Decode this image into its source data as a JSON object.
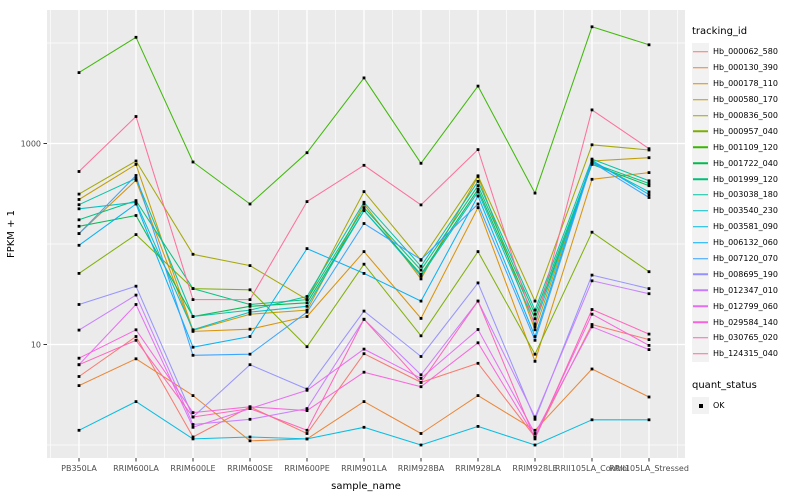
{
  "chart_data": {
    "type": "line",
    "title": "",
    "xlabel": "sample_name",
    "ylabel": "FPKM + 1",
    "y_scale": "log10",
    "ylim": [
      0.74,
      21400
    ],
    "grid": true,
    "legend_position": "right",
    "panel_bg": "#EBEBEB",
    "grid_color": "#FFFFFF",
    "point_color": "#000000",
    "axis_text_color": "#4D4D4D",
    "tick_color": "#333333",
    "y_ticks": [
      {
        "value": 1000,
        "label": "1000"
      },
      {
        "value": 10,
        "label": "10"
      }
    ],
    "y_minor_gridline_values": [
      1,
      100,
      10000
    ],
    "categories": [
      "PB350LA",
      "RRIM600LA",
      "RRIM600LE",
      "RRIM600SE",
      "RRIM600PE",
      "RRIM901LA",
      "RRIM928BA",
      "RRIM928LA",
      "RRIM928LE",
      "RRII105LA_Control",
      "RRII105LA_Stressed"
    ],
    "series": [
      {
        "name": "Hb_000062_580",
        "color": "#F8766D",
        "values": [
          4.8,
          12,
          1.2,
          2.4,
          1.3,
          8.1,
          4.2,
          6.5,
          1.2,
          15.8,
          11.2
        ]
      },
      {
        "name": "Hb_000130_390",
        "color": "#EA8331",
        "values": [
          3.9,
          7.2,
          3.1,
          1.1,
          1.15,
          2.7,
          1.3,
          3.1,
          1.4,
          5.7,
          3.0
        ]
      },
      {
        "name": "Hb_000178_110",
        "color": "#D89000",
        "values": [
          127,
          430,
          13.5,
          14.2,
          19,
          84,
          18.2,
          230,
          6.8,
          440,
          513
        ]
      },
      {
        "name": "Hb_000580_170",
        "color": "#C09B00",
        "values": [
          277,
          620,
          13.8,
          20,
          22,
          250,
          45,
          470,
          14,
          670,
          723
        ]
      },
      {
        "name": "Hb_000836_500",
        "color": "#A3A500",
        "values": [
          314,
          670,
          79,
          61,
          28,
          332,
          69,
          477,
          27,
          970,
          862
        ]
      },
      {
        "name": "Hb_000957_040",
        "color": "#7CAE00",
        "values": [
          51,
          124,
          36,
          35,
          9.5,
          63,
          12.2,
          84,
          8,
          131,
          53
        ]
      },
      {
        "name": "Hb_001109_120",
        "color": "#39B600",
        "values": [
          5080,
          11400,
          655,
          250,
          810,
          4500,
          635,
          3725,
          321,
          14500,
          9600
        ]
      },
      {
        "name": "Hb_001722_040",
        "color": "#00BB4E",
        "values": [
          150,
          192,
          19,
          24,
          26,
          215,
          50,
          350,
          18,
          620,
          380
        ]
      },
      {
        "name": "Hb_001999_120",
        "color": "#00BF7D",
        "values": [
          174,
          270,
          36,
          25,
          28,
          230,
          55,
          380,
          20,
          640,
          400
        ]
      },
      {
        "name": "Hb_003038_180",
        "color": "#00C1A3",
        "values": [
          246,
          450,
          19,
          22,
          30,
          260,
          60,
          420,
          22,
          700,
          425
        ]
      },
      {
        "name": "Hb_003540_230",
        "color": "#00BFC4",
        "values": [
          224,
          260,
          14,
          21,
          24,
          215,
          48,
          330,
          16,
          660,
          330
        ]
      },
      {
        "name": "Hb_003581_090",
        "color": "#00BAE0",
        "values": [
          1.4,
          2.7,
          1.15,
          1.2,
          1.15,
          1.5,
          1.0,
          1.53,
          1.0,
          1.78,
          1.78
        ]
      },
      {
        "name": "Hb_006132_060",
        "color": "#00B0F6",
        "values": [
          97,
          250,
          9.4,
          12,
          90,
          51,
          27,
          300,
          12,
          680,
          310
        ]
      },
      {
        "name": "Hb_007120_070",
        "color": "#35A2FF",
        "values": [
          127,
          480,
          7.8,
          8,
          21,
          160,
          70,
          250,
          11,
          650,
          290
        ]
      },
      {
        "name": "Hb_008695_190",
        "color": "#9590FF",
        "values": [
          25,
          38,
          1.9,
          6.3,
          3.6,
          21.5,
          7.6,
          41,
          1.8,
          49,
          36
        ]
      },
      {
        "name": "Hb_012347_010",
        "color": "#C77CFF",
        "values": [
          13.9,
          31,
          1.6,
          1.8,
          2.3,
          17.8,
          5.0,
          27,
          1.9,
          43,
          32
        ]
      },
      {
        "name": "Hb_012799_060",
        "color": "#E76BF3",
        "values": [
          6.3,
          25,
          1.5,
          2.3,
          3.5,
          9.0,
          4.6,
          14.1,
          1.3,
          15,
          8.9
        ]
      },
      {
        "name": "Hb_029584_140",
        "color": "#FA62DB",
        "values": [
          7.3,
          14,
          2.1,
          2.4,
          2.2,
          5.3,
          3.8,
          10.4,
          1.2,
          20,
          9.8
        ]
      },
      {
        "name": "Hb_030765_020",
        "color": "#FF62BC",
        "values": [
          6.3,
          11,
          1.9,
          2.3,
          1.4,
          17.8,
          4.2,
          27,
          1.15,
          22.3,
          12.7
        ]
      },
      {
        "name": "Hb_124315_040",
        "color": "#FF6A98",
        "values": [
          526,
          1858,
          28,
          28,
          264,
          607,
          245,
          870,
          15,
          2160,
          887
        ]
      }
    ],
    "legend": {
      "tracking_title": "tracking_id",
      "quant_title": "quant_status",
      "quant_ok_label": "OK",
      "quant_ok_color": "#000000"
    }
  }
}
